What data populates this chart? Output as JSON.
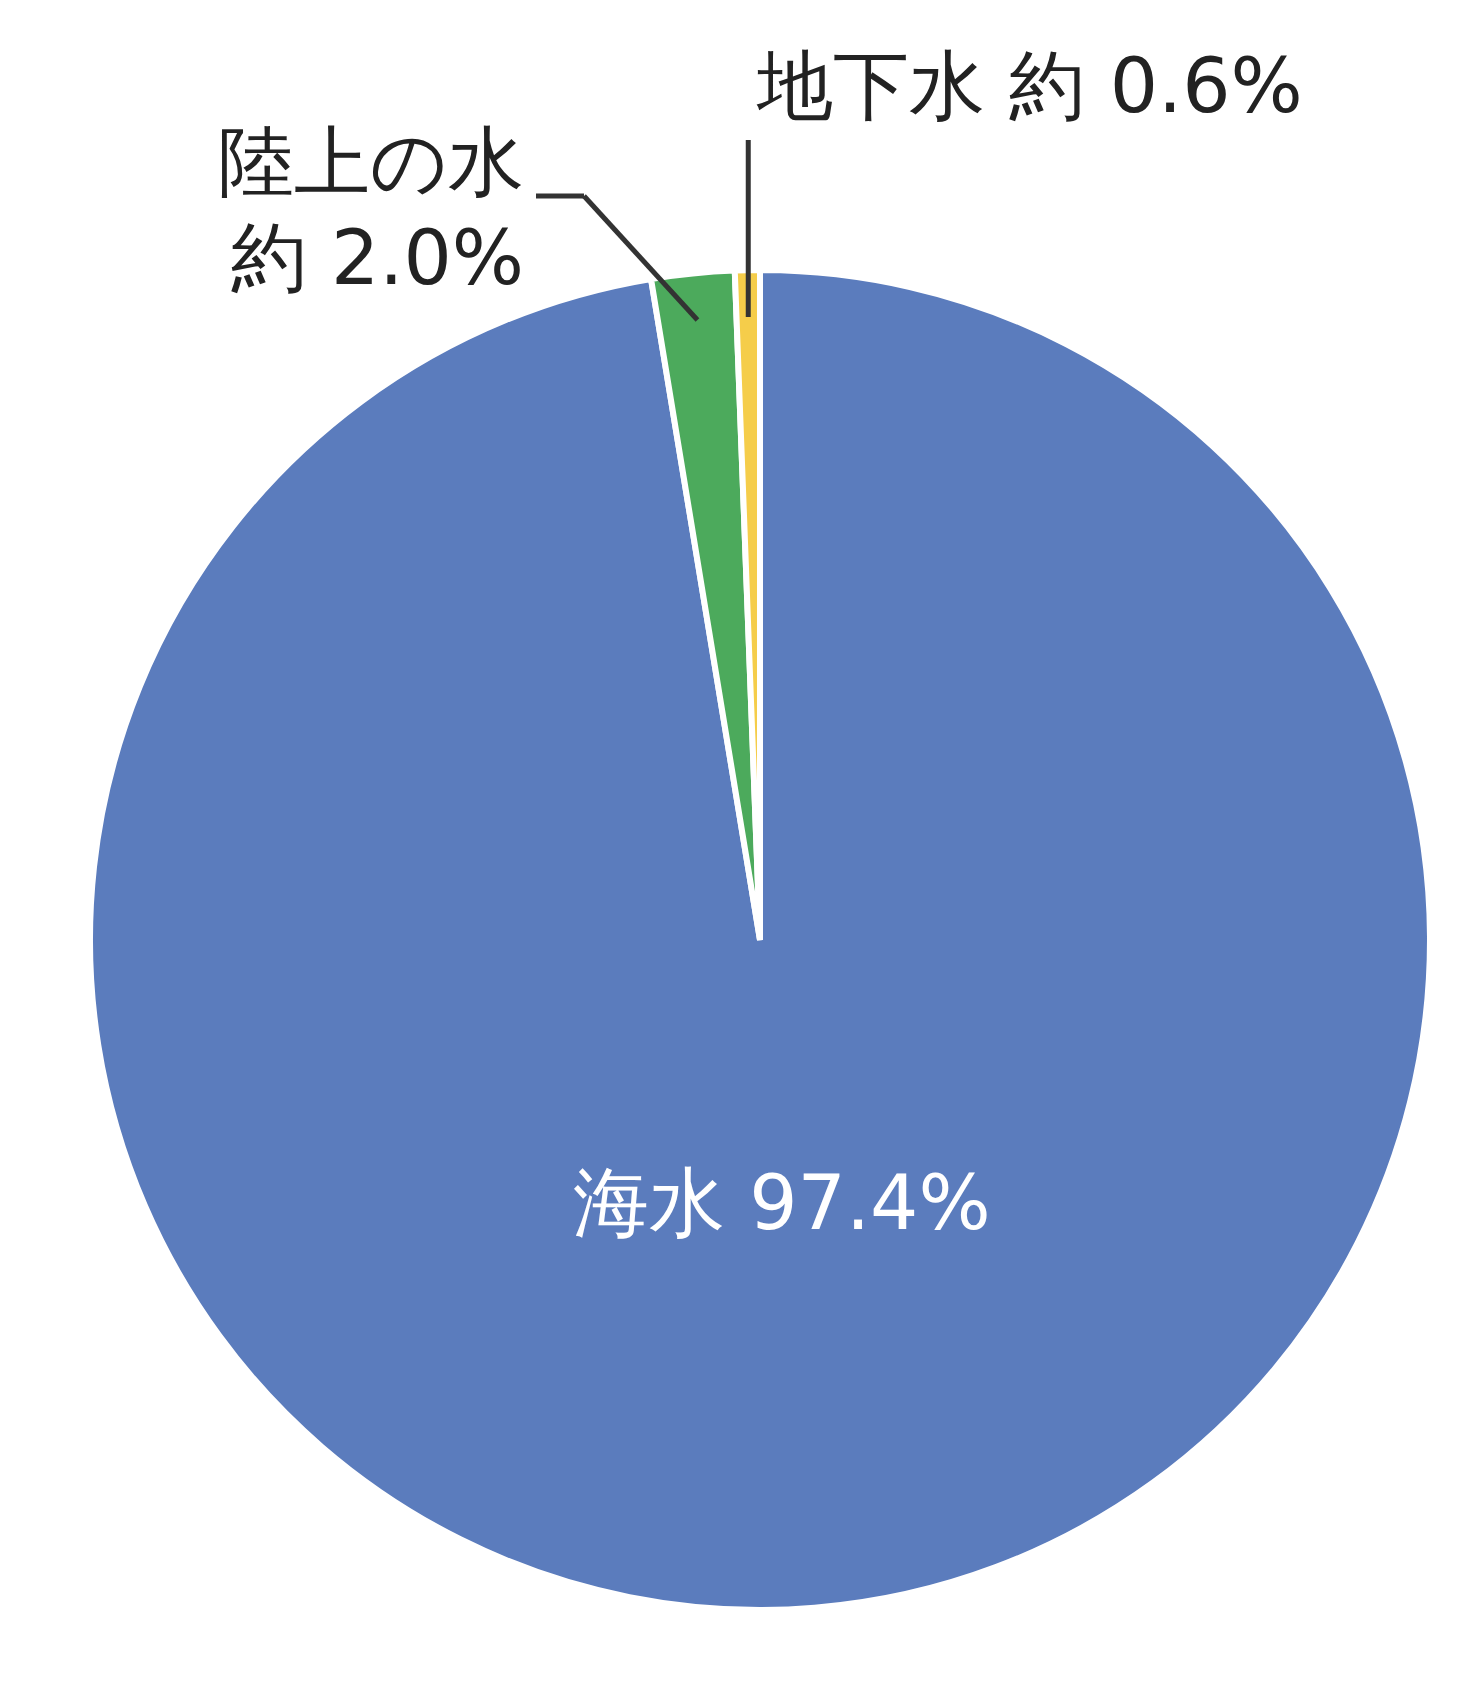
{
  "chart_data": {
    "type": "pie",
    "categories": [
      "海水",
      "陸上の水",
      "地下水"
    ],
    "values": [
      97.4,
      2.0,
      0.6
    ],
    "value_labels": [
      "97.4%",
      "約 2.0%",
      "約 0.6%"
    ],
    "colors": [
      "#5b7cbd",
      "#4caa5c",
      "#f5cd4a"
    ]
  }
}
